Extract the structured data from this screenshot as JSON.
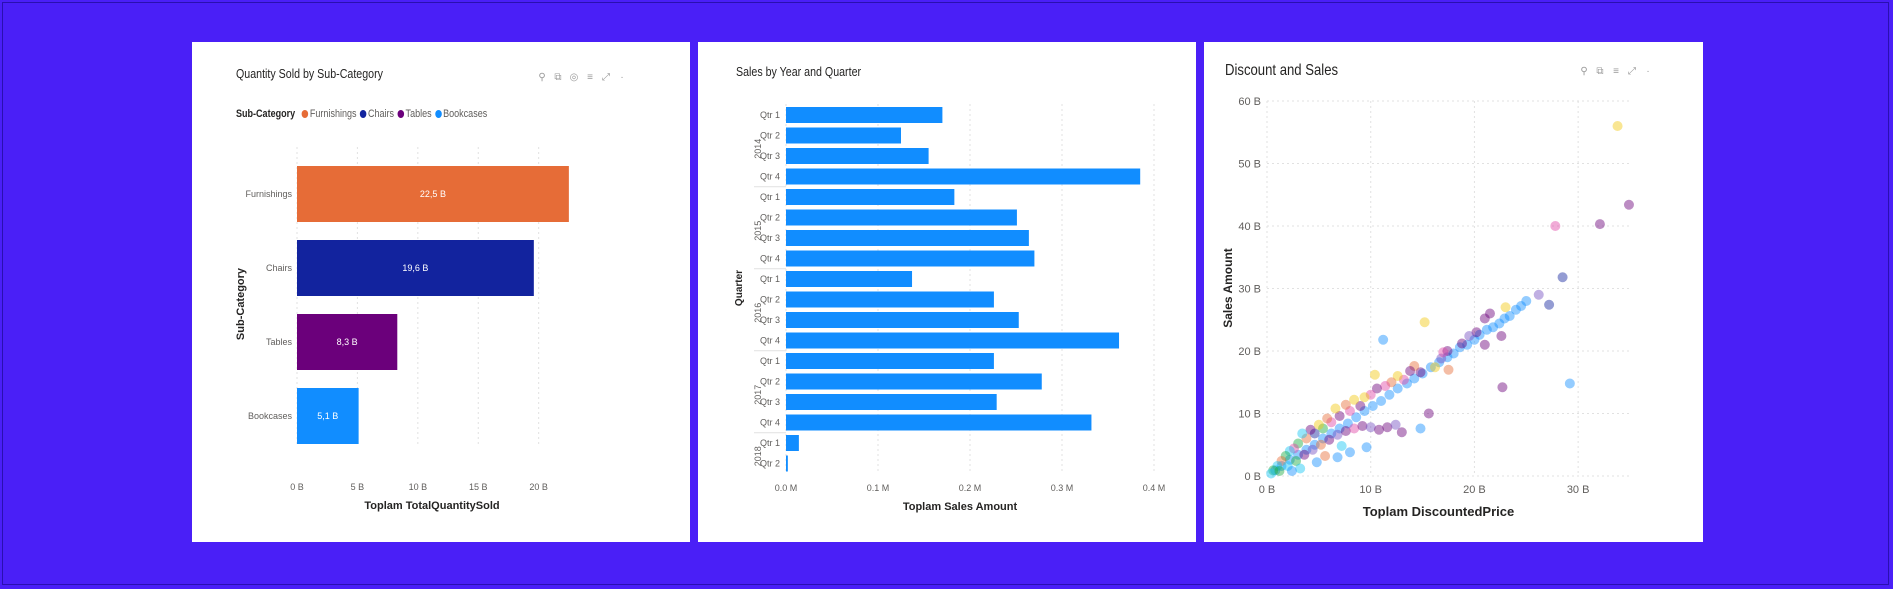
{
  "charts": [
    {
      "title": "Quantity Sold by Sub-Category",
      "legend_title": "Sub-Category",
      "toolbar": [
        "pin-icon",
        "copy-icon",
        "spotlight-icon",
        "filter-icon",
        "focus-mode-icon",
        "more-options-icon"
      ]
    },
    {
      "title": "Sales by Year and Quarter"
    },
    {
      "title": "Discount and Sales",
      "toolbar": [
        "pin-icon",
        "copy-icon",
        "filter-icon",
        "focus-mode-icon",
        "more-options-icon"
      ]
    }
  ],
  "chart_data": [
    {
      "type": "bar",
      "orientation": "horizontal",
      "title": "Quantity Sold by Sub-Category",
      "categories": [
        "Furnishings",
        "Chairs",
        "Tables",
        "Bookcases"
      ],
      "values": [
        22.5,
        19.6,
        8.3,
        5.1
      ],
      "data_labels": [
        "22,5 B",
        "19,6 B",
        "8,3 B",
        "5,1 B"
      ],
      "colors": [
        "#e66c37",
        "#12239e",
        "#6b007b",
        "#118dff"
      ],
      "xlabel": "Toplam TotalQuantitySold",
      "ylabel": "Sub-Category",
      "xlim": [
        0,
        24
      ],
      "x_ticks": [
        0,
        5,
        10,
        15,
        20
      ],
      "x_tick_labels": [
        "0 B",
        "5 B",
        "10 B",
        "15 B",
        "20 B"
      ],
      "legend": [
        "Furnishings",
        "Chairs",
        "Tables",
        "Bookcases"
      ],
      "legend_position": "top-left",
      "grid": true
    },
    {
      "type": "bar",
      "orientation": "horizontal",
      "title": "Sales by Year and Quarter",
      "years": [
        {
          "year": "2014",
          "quarters": [
            "Qtr 1",
            "Qtr 2",
            "Qtr 3",
            "Qtr 4"
          ],
          "values": [
            0.17,
            0.125,
            0.155,
            0.385
          ]
        },
        {
          "year": "2015",
          "quarters": [
            "Qtr 1",
            "Qtr 2",
            "Qtr 3",
            "Qtr 4"
          ],
          "values": [
            0.183,
            0.251,
            0.264,
            0.27
          ]
        },
        {
          "year": "2016",
          "quarters": [
            "Qtr 1",
            "Qtr 2",
            "Qtr 3",
            "Qtr 4"
          ],
          "values": [
            0.137,
            0.226,
            0.253,
            0.362
          ]
        },
        {
          "year": "2017",
          "quarters": [
            "Qtr 1",
            "Qtr 2",
            "Qtr 3",
            "Qtr 4"
          ],
          "values": [
            0.226,
            0.278,
            0.229,
            0.332
          ]
        },
        {
          "year": "2018",
          "quarters": [
            "Qtr 1",
            "Qtr 2"
          ],
          "values": [
            0.014,
            0.002
          ]
        }
      ],
      "color": "#118dff",
      "xlabel": "Toplam Sales Amount",
      "ylabel": "Quarter",
      "xlim": [
        0,
        0.4
      ],
      "x_ticks": [
        0,
        0.1,
        0.2,
        0.3,
        0.4
      ],
      "x_tick_labels": [
        "0.0 M",
        "0.1 M",
        "0.2 M",
        "0.3 M",
        "0.4 M"
      ],
      "grid": true
    },
    {
      "type": "scatter",
      "title": "Discount and Sales",
      "xlabel": "Toplam DiscountedPrice",
      "ylabel": "Sales Amount",
      "xlim": [
        0,
        35
      ],
      "ylim": [
        0,
        60
      ],
      "x_ticks": [
        0,
        10,
        20,
        30
      ],
      "x_tick_labels": [
        "0 B",
        "10 B",
        "20 B",
        "30 B"
      ],
      "y_ticks": [
        0,
        10,
        20,
        30,
        40,
        50,
        60
      ],
      "y_tick_labels": [
        "0 B",
        "10 B",
        "20 B",
        "30 B",
        "40 B",
        "50 B",
        "60 B"
      ],
      "grid": true,
      "colors": [
        "#118dff",
        "#6b007b",
        "#e66c37",
        "#f2c80f",
        "#e044a7",
        "#12239e",
        "#1aab40",
        "#744ec2",
        "#d9b300",
        "#15c6f4"
      ],
      "points": [
        {
          "x": 33.8,
          "y": 56.0,
          "c": 3
        },
        {
          "x": 34.9,
          "y": 43.4,
          "c": 1
        },
        {
          "x": 32.1,
          "y": 40.3,
          "c": 1
        },
        {
          "x": 27.8,
          "y": 40.0,
          "c": 4
        },
        {
          "x": 28.5,
          "y": 31.8,
          "c": 5
        },
        {
          "x": 27.2,
          "y": 27.4,
          "c": 5
        },
        {
          "x": 26.2,
          "y": 29.0,
          "c": 7
        },
        {
          "x": 25.0,
          "y": 28.0,
          "c": 0
        },
        {
          "x": 24.5,
          "y": 27.2,
          "c": 0
        },
        {
          "x": 24.0,
          "y": 26.6,
          "c": 0
        },
        {
          "x": 23.4,
          "y": 25.6,
          "c": 0
        },
        {
          "x": 22.9,
          "y": 25.2,
          "c": 0
        },
        {
          "x": 22.4,
          "y": 24.4,
          "c": 0
        },
        {
          "x": 21.8,
          "y": 23.8,
          "c": 0
        },
        {
          "x": 21.2,
          "y": 23.4,
          "c": 0
        },
        {
          "x": 20.5,
          "y": 22.6,
          "c": 0
        },
        {
          "x": 20.0,
          "y": 21.8,
          "c": 0
        },
        {
          "x": 19.3,
          "y": 21.0,
          "c": 0
        },
        {
          "x": 18.6,
          "y": 20.6,
          "c": 0
        },
        {
          "x": 18.0,
          "y": 19.6,
          "c": 0
        },
        {
          "x": 17.4,
          "y": 19.0,
          "c": 0
        },
        {
          "x": 16.6,
          "y": 18.2,
          "c": 0
        },
        {
          "x": 15.8,
          "y": 17.4,
          "c": 0
        },
        {
          "x": 15.0,
          "y": 16.4,
          "c": 0
        },
        {
          "x": 14.2,
          "y": 15.6,
          "c": 0
        },
        {
          "x": 13.5,
          "y": 14.8,
          "c": 0
        },
        {
          "x": 12.6,
          "y": 14.0,
          "c": 0
        },
        {
          "x": 11.8,
          "y": 13.0,
          "c": 0
        },
        {
          "x": 11.0,
          "y": 12.0,
          "c": 0
        },
        {
          "x": 10.2,
          "y": 11.2,
          "c": 0
        },
        {
          "x": 9.4,
          "y": 10.4,
          "c": 0
        },
        {
          "x": 8.6,
          "y": 9.4,
          "c": 0
        },
        {
          "x": 7.8,
          "y": 8.4,
          "c": 0
        },
        {
          "x": 7.0,
          "y": 7.6,
          "c": 0
        },
        {
          "x": 6.2,
          "y": 6.8,
          "c": 0
        },
        {
          "x": 5.4,
          "y": 6.0,
          "c": 0
        },
        {
          "x": 4.6,
          "y": 5.0,
          "c": 0
        },
        {
          "x": 3.8,
          "y": 4.2,
          "c": 0
        },
        {
          "x": 3.0,
          "y": 3.4,
          "c": 0
        },
        {
          "x": 2.2,
          "y": 2.6,
          "c": 0
        },
        {
          "x": 1.4,
          "y": 1.6,
          "c": 0
        },
        {
          "x": 0.8,
          "y": 0.9,
          "c": 0
        },
        {
          "x": 21.5,
          "y": 26.0,
          "c": 1
        },
        {
          "x": 21.0,
          "y": 25.2,
          "c": 1
        },
        {
          "x": 20.2,
          "y": 23.0,
          "c": 1
        },
        {
          "x": 19.5,
          "y": 22.4,
          "c": 7
        },
        {
          "x": 18.8,
          "y": 21.2,
          "c": 1
        },
        {
          "x": 17.4,
          "y": 20.0,
          "c": 1
        },
        {
          "x": 16.8,
          "y": 18.8,
          "c": 7
        },
        {
          "x": 21.0,
          "y": 21.0,
          "c": 1
        },
        {
          "x": 22.6,
          "y": 22.4,
          "c": 1
        },
        {
          "x": 23.0,
          "y": 27.0,
          "c": 3
        },
        {
          "x": 17.5,
          "y": 17.0,
          "c": 2
        },
        {
          "x": 15.2,
          "y": 24.6,
          "c": 3
        },
        {
          "x": 11.2,
          "y": 21.8,
          "c": 0
        },
        {
          "x": 17.0,
          "y": 19.8,
          "c": 4
        },
        {
          "x": 16.2,
          "y": 17.4,
          "c": 3
        },
        {
          "x": 14.8,
          "y": 16.6,
          "c": 1
        },
        {
          "x": 14.2,
          "y": 17.6,
          "c": 2
        },
        {
          "x": 13.8,
          "y": 16.8,
          "c": 1
        },
        {
          "x": 13.2,
          "y": 15.4,
          "c": 4
        },
        {
          "x": 12.6,
          "y": 16.0,
          "c": 3
        },
        {
          "x": 12.0,
          "y": 15.0,
          "c": 2
        },
        {
          "x": 11.4,
          "y": 14.4,
          "c": 4
        },
        {
          "x": 10.6,
          "y": 14.0,
          "c": 1
        },
        {
          "x": 10.4,
          "y": 16.2,
          "c": 3
        },
        {
          "x": 10.0,
          "y": 13.0,
          "c": 4
        },
        {
          "x": 9.4,
          "y": 12.6,
          "c": 3
        },
        {
          "x": 9.0,
          "y": 11.2,
          "c": 1
        },
        {
          "x": 8.4,
          "y": 12.2,
          "c": 3
        },
        {
          "x": 8.0,
          "y": 10.4,
          "c": 4
        },
        {
          "x": 7.6,
          "y": 11.4,
          "c": 2
        },
        {
          "x": 7.0,
          "y": 9.6,
          "c": 1
        },
        {
          "x": 6.6,
          "y": 10.8,
          "c": 3
        },
        {
          "x": 6.2,
          "y": 8.6,
          "c": 4
        },
        {
          "x": 5.8,
          "y": 9.2,
          "c": 2
        },
        {
          "x": 5.4,
          "y": 7.6,
          "c": 6
        },
        {
          "x": 5.0,
          "y": 8.2,
          "c": 3
        },
        {
          "x": 4.6,
          "y": 6.8,
          "c": 5
        },
        {
          "x": 4.2,
          "y": 7.4,
          "c": 1
        },
        {
          "x": 3.8,
          "y": 6.0,
          "c": 2
        },
        {
          "x": 3.4,
          "y": 6.8,
          "c": 9
        },
        {
          "x": 3.0,
          "y": 5.2,
          "c": 6
        },
        {
          "x": 2.6,
          "y": 4.4,
          "c": 4
        },
        {
          "x": 2.2,
          "y": 4.0,
          "c": 9
        },
        {
          "x": 1.8,
          "y": 3.2,
          "c": 6
        },
        {
          "x": 1.4,
          "y": 2.4,
          "c": 2
        },
        {
          "x": 1.0,
          "y": 1.6,
          "c": 9
        },
        {
          "x": 0.6,
          "y": 0.9,
          "c": 6
        },
        {
          "x": 0.4,
          "y": 0.4,
          "c": 9
        },
        {
          "x": 1.2,
          "y": 0.8,
          "c": 6
        },
        {
          "x": 2.0,
          "y": 1.6,
          "c": 9
        },
        {
          "x": 2.8,
          "y": 2.4,
          "c": 6
        },
        {
          "x": 3.6,
          "y": 3.4,
          "c": 1
        },
        {
          "x": 4.4,
          "y": 4.2,
          "c": 7
        },
        {
          "x": 5.2,
          "y": 5.0,
          "c": 2
        },
        {
          "x": 6.0,
          "y": 5.8,
          "c": 1
        },
        {
          "x": 6.8,
          "y": 6.6,
          "c": 7
        },
        {
          "x": 7.6,
          "y": 7.2,
          "c": 1
        },
        {
          "x": 8.4,
          "y": 7.6,
          "c": 4
        },
        {
          "x": 9.2,
          "y": 8.0,
          "c": 1
        },
        {
          "x": 10.0,
          "y": 7.8,
          "c": 7
        },
        {
          "x": 10.8,
          "y": 7.4,
          "c": 1
        },
        {
          "x": 11.6,
          "y": 7.8,
          "c": 1
        },
        {
          "x": 12.4,
          "y": 8.2,
          "c": 7
        },
        {
          "x": 13.0,
          "y": 7.0,
          "c": 1
        },
        {
          "x": 14.8,
          "y": 7.6,
          "c": 0
        },
        {
          "x": 15.6,
          "y": 10.0,
          "c": 1
        },
        {
          "x": 9.6,
          "y": 4.6,
          "c": 0
        },
        {
          "x": 8.0,
          "y": 3.8,
          "c": 0
        },
        {
          "x": 6.8,
          "y": 3.0,
          "c": 0
        },
        {
          "x": 7.2,
          "y": 4.8,
          "c": 9
        },
        {
          "x": 4.8,
          "y": 2.2,
          "c": 0
        },
        {
          "x": 3.2,
          "y": 1.2,
          "c": 9
        },
        {
          "x": 22.7,
          "y": 14.2,
          "c": 1
        },
        {
          "x": 29.2,
          "y": 14.8,
          "c": 0
        },
        {
          "x": 2.4,
          "y": 0.8,
          "c": 0
        },
        {
          "x": 5.6,
          "y": 3.2,
          "c": 2
        }
      ]
    }
  ]
}
